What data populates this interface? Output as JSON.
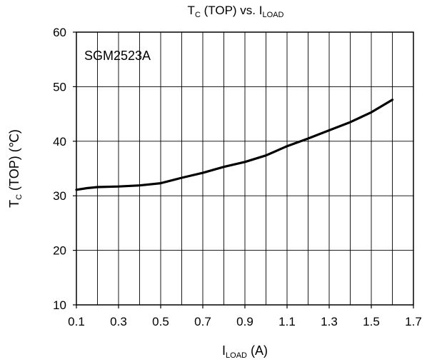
{
  "chart_data": {
    "type": "line",
    "title": {
      "main": "T",
      "main_sub": "C",
      "mid": " (TOP) vs. I",
      "end_sub": "LOAD"
    },
    "xlabel": {
      "main": "I",
      "sub": "LOAD",
      "rest": " (A)"
    },
    "ylabel": {
      "main": "T",
      "sub": "C",
      "rest": " (TOP) (℃)"
    },
    "xlim": [
      0.1,
      1.7
    ],
    "ylim": [
      10,
      60
    ],
    "xticks": [
      0.1,
      0.3,
      0.5,
      0.7,
      0.9,
      1.1,
      1.3,
      1.5,
      1.7
    ],
    "xtick_labels": [
      "0.1",
      "0.3",
      "0.5",
      "0.7",
      "0.9",
      "1.1",
      "1.3",
      "1.5",
      "1.7"
    ],
    "yticks": [
      10,
      20,
      30,
      40,
      50,
      60
    ],
    "ytick_labels": [
      "10",
      "20",
      "30",
      "40",
      "50",
      "60"
    ],
    "x_minor_step": 0.1,
    "grid": true,
    "annotation": "SGM2523A",
    "series": [
      {
        "color": "#000000",
        "x": [
          0.1,
          0.15,
          0.2,
          0.3,
          0.4,
          0.5,
          0.6,
          0.7,
          0.8,
          0.9,
          1.0,
          1.1,
          1.2,
          1.3,
          1.4,
          1.5,
          1.6
        ],
        "y": [
          31.1,
          31.4,
          31.6,
          31.7,
          31.9,
          32.3,
          33.3,
          34.2,
          35.3,
          36.2,
          37.4,
          39.1,
          40.5,
          42.0,
          43.5,
          45.3,
          47.6
        ]
      }
    ]
  }
}
